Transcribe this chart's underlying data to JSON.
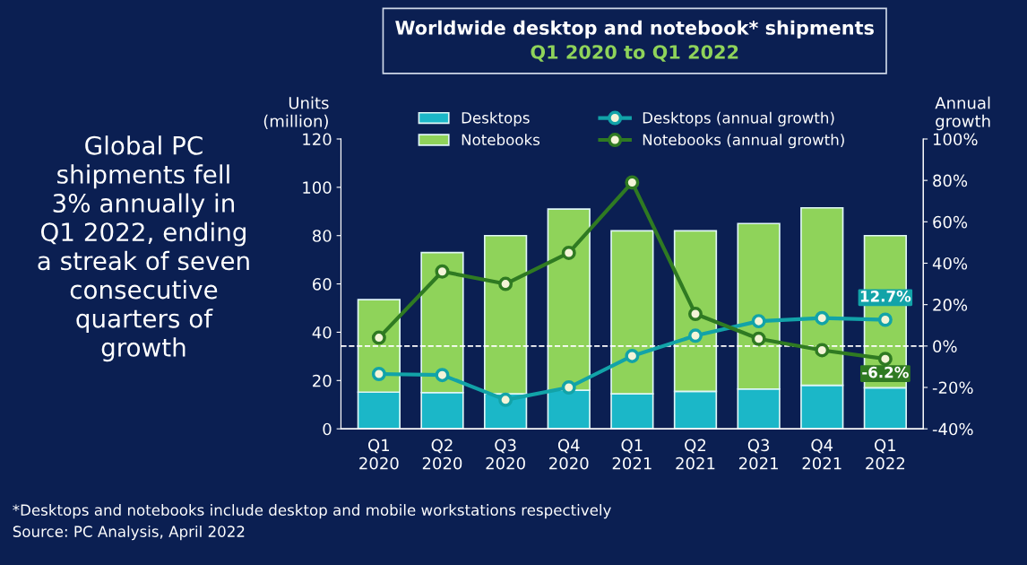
{
  "chart_data": {
    "type": "bar",
    "stacked": true,
    "title": "Worldwide desktop and notebook* shipments",
    "subtitle": "Q1 2020 to Q1 2022",
    "ylabel": "Units\n(million)",
    "y2label": "Annual\ngrowth",
    "categories": [
      "Q1\n2020",
      "Q2\n2020",
      "Q3\n2020",
      "Q4\n2020",
      "Q1\n2021",
      "Q2\n2021",
      "Q3\n2021",
      "Q4\n2021",
      "Q1\n2022"
    ],
    "series": [
      {
        "name": "Desktops",
        "color": "#1bb7c8",
        "values": [
          15.2,
          15,
          14.5,
          16,
          14.5,
          15.5,
          16.5,
          18,
          17
        ]
      },
      {
        "name": "Notebooks",
        "color": "#8fd35a",
        "values": [
          38.3,
          58,
          65.5,
          75,
          67.5,
          66.5,
          68.5,
          73.5,
          63
        ]
      },
      {
        "name": "Desktops (annual growth)",
        "type": "line",
        "axis": "y2",
        "color": "#12a3a8",
        "marker": "circle",
        "values": [
          -13.5,
          -14,
          -26,
          -20,
          -4.8,
          5,
          12,
          13.5,
          12.7
        ],
        "value_labels": [
          null,
          null,
          null,
          null,
          null,
          null,
          null,
          null,
          "12.7%"
        ]
      },
      {
        "name": "Notebooks (annual growth)",
        "type": "line",
        "axis": "y2",
        "color": "#2f7a22",
        "marker": "circle",
        "values": [
          4,
          36,
          30,
          45,
          79,
          15.5,
          3.5,
          -2,
          -6.2
        ],
        "value_labels": [
          null,
          null,
          null,
          null,
          null,
          null,
          null,
          null,
          "-6.2%"
        ]
      }
    ],
    "ylim": [
      0,
      120
    ],
    "yticks": [
      0,
      20,
      40,
      60,
      80,
      100,
      120
    ],
    "y2lim": [
      -40,
      100
    ],
    "y2ticks": [
      {
        "value": -40,
        "label": "-40%"
      },
      {
        "value": -20,
        "label": "-20%"
      },
      {
        "value": 0,
        "label": "0%"
      },
      {
        "value": 20,
        "label": "20%"
      },
      {
        "value": 40,
        "label": "40%"
      },
      {
        "value": 60,
        "label": "60%"
      },
      {
        "value": 80,
        "label": "80%"
      },
      {
        "value": 100,
        "label": "100%"
      }
    ],
    "ref_lines": [
      {
        "axis": "y2",
        "value": 0,
        "color": "#ffffff",
        "line_style": "dashed"
      }
    ],
    "legend": "top",
    "grid": false,
    "annotations": [
      "Global PC\nshipments fell\n3% annually in\nQ1 2022, ending\na streak of seven\nconsecutive\nquarters of\ngrowth",
      "*Desktops and notebooks include desktop and mobile workstations respectively",
      "Source: PC Analysis, April 2022"
    ]
  }
}
